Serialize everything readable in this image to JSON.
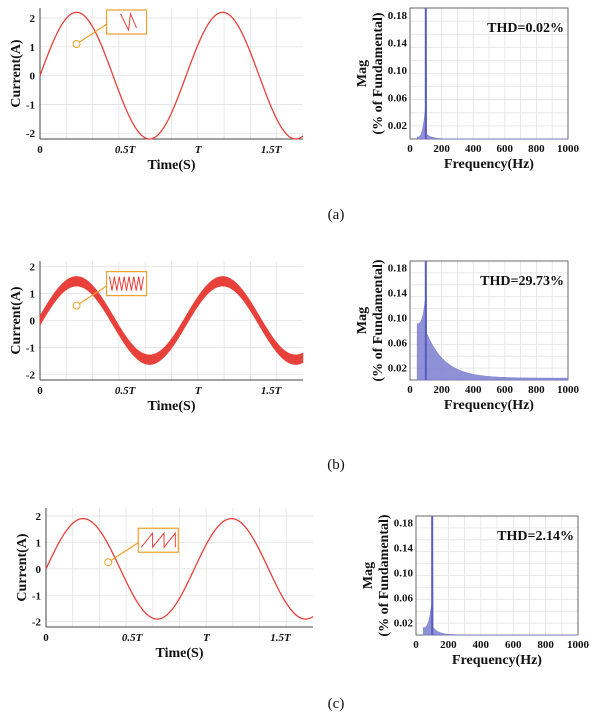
{
  "figure": {
    "captions": [
      "(a)",
      "(b)",
      "(c)"
    ]
  },
  "colors": {
    "current": "#e8413b",
    "spectrum": "#7b7ed0",
    "callout": "#f0a02a",
    "grid": "#e3e3e3",
    "axis": "#444444"
  },
  "chart_data": [
    {
      "type": "line",
      "panel": "a",
      "xlabel": "Time(S)",
      "ylabel": "Current(A)",
      "xticks": [
        "0",
        "0.5T",
        "T",
        "1.5T"
      ],
      "xtick_values": [
        0,
        0.5,
        1,
        1.5
      ],
      "yticks": [
        "2",
        "1",
        "0",
        "-1",
        "-2"
      ],
      "ytick_values": [
        2,
        1,
        0,
        -1,
        -2
      ],
      "xlim": [
        0,
        1.8
      ],
      "ylim": [
        -2.2,
        2.35
      ],
      "grid": true,
      "series": [
        {
          "amplitude": 2.2,
          "ripple": 0
        }
      ],
      "inset": {
        "style": "single-ramp",
        "at": [
          0.25,
          1.1
        ]
      }
    },
    {
      "type": "bar",
      "panel": "a",
      "xlabel": "Frequency(Hz)",
      "ylabel": "Mag",
      "ylabel2": "(% of Fundamental)",
      "xticks": [
        "0",
        "200",
        "400",
        "600",
        "800",
        "1000"
      ],
      "xtick_values": [
        0,
        200,
        400,
        600,
        800,
        1000
      ],
      "yticks": [
        "0.18",
        "0.14",
        "0.10",
        "0.06",
        "0.02"
      ],
      "ytick_values": [
        0.18,
        0.14,
        0.1,
        0.06,
        0.02
      ],
      "xlim": [
        0,
        1000
      ],
      "ylim": [
        0,
        0.19
      ],
      "grid": true,
      "fundamental_hz": 100,
      "peak": 0.19,
      "tail": 0.002,
      "annotation": "THD=0.02%"
    },
    {
      "type": "line",
      "panel": "b",
      "xlabel": "Time(S)",
      "ylabel": "Current(A)",
      "xticks": [
        "0",
        "0.5T",
        "T",
        "1.5T"
      ],
      "xtick_values": [
        0,
        0.5,
        1,
        1.5
      ],
      "yticks": [
        "2",
        "1",
        "0",
        "-1",
        "-2"
      ],
      "ytick_values": [
        2,
        1,
        0,
        -1,
        -2
      ],
      "xlim": [
        0,
        1.8
      ],
      "ylim": [
        -2.2,
        2.2
      ],
      "grid": true,
      "series": [
        {
          "amplitude": 1.45,
          "ripple": 0.18
        }
      ],
      "inset": {
        "style": "dense-sawtooth",
        "at": [
          0.25,
          0.55
        ]
      }
    },
    {
      "type": "bar",
      "panel": "b",
      "xlabel": "Frequency(Hz)",
      "ylabel": "Mag",
      "ylabel2": "(% of Fundamental)",
      "xticks": [
        "0",
        "200",
        "400",
        "600",
        "800",
        "1000"
      ],
      "xtick_values": [
        0,
        200,
        400,
        600,
        800,
        1000
      ],
      "yticks": [
        "0.18",
        "0.14",
        "0.10",
        "0.06",
        "0.02"
      ],
      "ytick_values": [
        0.18,
        0.14,
        0.1,
        0.06,
        0.02
      ],
      "xlim": [
        0,
        1000
      ],
      "ylim": [
        0,
        0.19
      ],
      "grid": true,
      "fundamental_hz": 100,
      "peak": 0.19,
      "tail": 0.06,
      "annotation": "THD=29.73%"
    },
    {
      "type": "line",
      "panel": "c",
      "xlabel": "Time(S)",
      "ylabel": "Current(A)",
      "xticks": [
        "0",
        "0.5T",
        "T",
        "1.5T"
      ],
      "xtick_values": [
        0,
        0.5,
        1,
        1.5
      ],
      "yticks": [
        "2",
        "1",
        "0",
        "-1",
        "-2"
      ],
      "ytick_values": [
        2,
        1,
        0,
        -1,
        -2
      ],
      "xlim": [
        0,
        1.8
      ],
      "ylim": [
        -2.2,
        2.3
      ],
      "grid": true,
      "series": [
        {
          "amplitude": 1.9,
          "ripple": 0
        }
      ],
      "inset": {
        "style": "sparse-sawtooth",
        "at": [
          0.42,
          0.25
        ]
      }
    },
    {
      "type": "bar",
      "panel": "c",
      "xlabel": "Frequency(Hz)",
      "ylabel": "Mag",
      "ylabel2": "(% of Fundamental)",
      "xticks": [
        "0",
        "200",
        "400",
        "600",
        "800",
        "1000"
      ],
      "xtick_values": [
        0,
        200,
        400,
        600,
        800,
        1000
      ],
      "yticks": [
        "0.18",
        "0.14",
        "0.10",
        "0.06",
        "0.02"
      ],
      "ytick_values": [
        0.18,
        0.14,
        0.1,
        0.06,
        0.02
      ],
      "xlim": [
        0,
        1000
      ],
      "ylim": [
        0,
        0.19
      ],
      "grid": true,
      "fundamental_hz": 100,
      "peak": 0.19,
      "tail": 0.008,
      "annotation": "THD=2.14%"
    }
  ]
}
